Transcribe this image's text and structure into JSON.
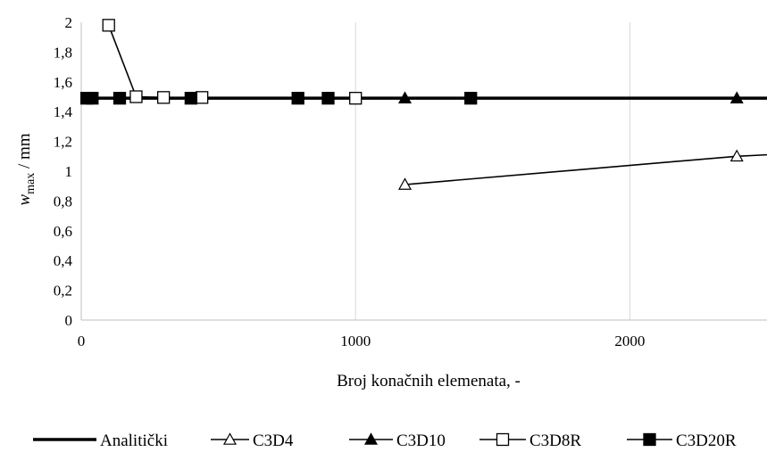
{
  "chart_data": {
    "type": "line",
    "xlabel": "Broj konačnih elemenata, -",
    "ylabel": {
      "main": "w",
      "sub": "max",
      "rest": " / mm"
    },
    "xlim": [
      0,
      2500
    ],
    "ylim": [
      0,
      2
    ],
    "xticks": [
      {
        "value": 0,
        "label": "0"
      },
      {
        "value": 1000,
        "label": "1000"
      },
      {
        "value": 2000,
        "label": "2000"
      }
    ],
    "yticks": [
      {
        "value": 0,
        "label": "0"
      },
      {
        "value": 0.2,
        "label": "0,2"
      },
      {
        "value": 0.4,
        "label": "0,4"
      },
      {
        "value": 0.6,
        "label": "0,6"
      },
      {
        "value": 0.8,
        "label": "0,8"
      },
      {
        "value": 1,
        "label": "1"
      },
      {
        "value": 1.2,
        "label": "1,2"
      },
      {
        "value": 1.4,
        "label": "1,4"
      },
      {
        "value": 1.6,
        "label": "1,6"
      },
      {
        "value": 1.8,
        "label": "1,8"
      },
      {
        "value": 2,
        "label": "2"
      }
    ],
    "grid": {
      "vertical": true,
      "horizontal": false
    },
    "legend_position": "bottom",
    "series": [
      {
        "name": "Analitički",
        "marker": "none",
        "line": "thick",
        "x": [
          0,
          2500
        ],
        "y": [
          1.49,
          1.49
        ]
      },
      {
        "name": "C3D4",
        "marker": "triangle-open",
        "line": "thin",
        "x": [
          1180,
          2390,
          2500
        ],
        "y": [
          0.91,
          1.1,
          1.11
        ]
      },
      {
        "name": "C3D10",
        "marker": "triangle-filled",
        "line": "thin",
        "x": [
          1180,
          2390
        ],
        "y": [
          1.49,
          1.49
        ]
      },
      {
        "name": "C3D8R",
        "marker": "square-open",
        "line": "thin",
        "x": [
          100,
          200,
          300,
          440,
          1000
        ],
        "y": [
          1.98,
          1.5,
          1.495,
          1.495,
          1.49
        ]
      },
      {
        "name": "C3D20R",
        "marker": "square-filled",
        "line": "thin",
        "x": [
          20,
          40,
          140,
          400,
          790,
          900,
          1420
        ],
        "y": [
          1.49,
          1.49,
          1.49,
          1.49,
          1.49,
          1.49,
          1.49
        ]
      }
    ]
  }
}
